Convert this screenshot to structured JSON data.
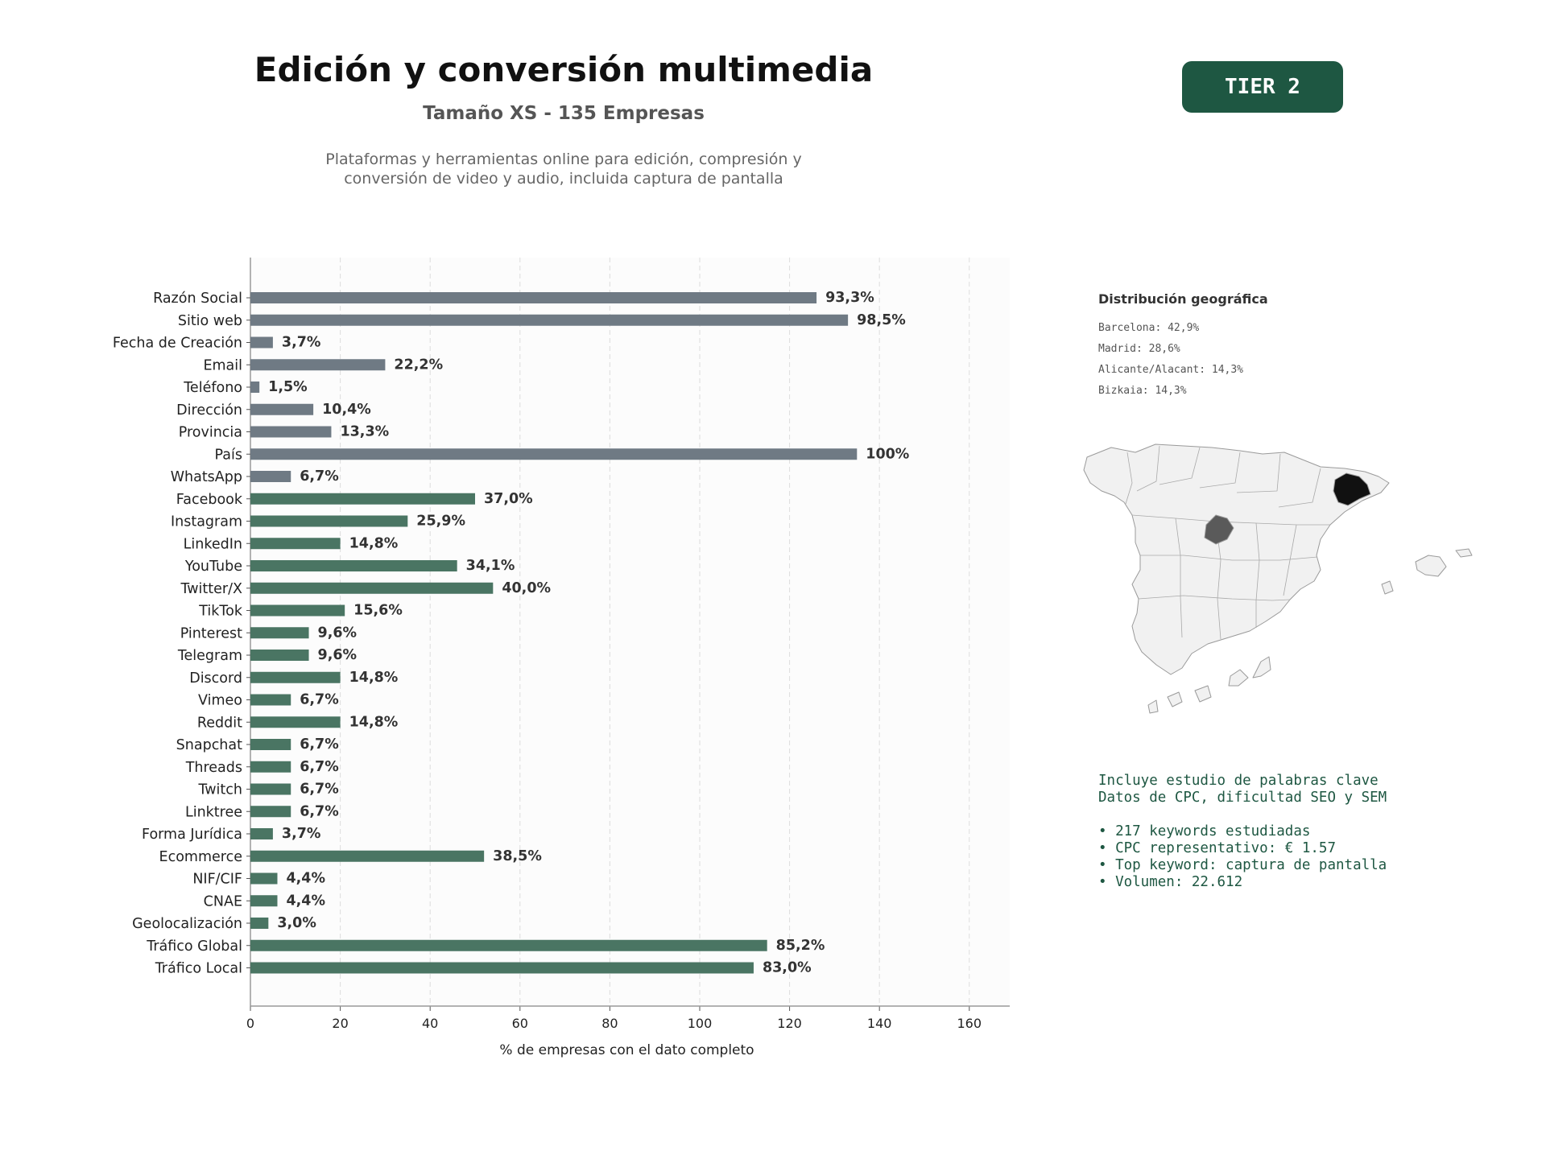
{
  "header": {
    "title": "Edición y conversión multimedia",
    "subtitle": "Tamaño XS - 135 Empresas",
    "description_line1": "Plataformas y herramientas online para edición, compresión y",
    "description_line2": "conversión de video y audio, incluida captura de pantalla",
    "tier_badge": "TIER 2"
  },
  "colors": {
    "badge": "#1e5742",
    "bar_contact": "#6f7a84",
    "bar_social": "#4a7563",
    "map_highlight_dark": "#111111",
    "map_highlight_mid": "#5a5a5a",
    "map_fill": "#f1f1f1",
    "keyword_text": "#1e5742"
  },
  "chart_data": {
    "type": "bar",
    "orientation": "horizontal",
    "categories": [
      "Razón Social",
      "Sitio web",
      "Fecha de Creación",
      "Email",
      "Teléfono",
      "Dirección",
      "Provincia",
      "País",
      "WhatsApp",
      "Facebook",
      "Instagram",
      "LinkedIn",
      "YouTube",
      "Twitter/X",
      "TikTok",
      "Pinterest",
      "Telegram",
      "Discord",
      "Vimeo",
      "Reddit",
      "Snapchat",
      "Threads",
      "Twitch",
      "Linktree",
      "Forma Jurídica",
      "Ecommerce",
      "NIF/CIF",
      "CNAE",
      "Geolocalización",
      "Tráfico Global",
      "Tráfico Local"
    ],
    "values": [
      126,
      133,
      5,
      30,
      2,
      14,
      18,
      135,
      9,
      50,
      35,
      20,
      46,
      54,
      21,
      13,
      13,
      20,
      9,
      20,
      9,
      9,
      9,
      9,
      5,
      52,
      6,
      6,
      4,
      115,
      112
    ],
    "value_labels": [
      "93,3%",
      "98,5%",
      "3,7%",
      "22,2%",
      "1,5%",
      "10,4%",
      "13,3%",
      "100%",
      "6,7%",
      "37,0%",
      "25,9%",
      "14,8%",
      "34,1%",
      "40,0%",
      "15,6%",
      "9,6%",
      "9,6%",
      "14,8%",
      "6,7%",
      "14,8%",
      "6,7%",
      "6,7%",
      "6,7%",
      "6,7%",
      "3,7%",
      "38,5%",
      "4,4%",
      "4,4%",
      "3,0%",
      "85,2%",
      "83,0%"
    ],
    "bar_groups": [
      "contact",
      "contact",
      "contact",
      "contact",
      "contact",
      "contact",
      "contact",
      "contact",
      "contact",
      "social",
      "social",
      "social",
      "social",
      "social",
      "social",
      "social",
      "social",
      "social",
      "social",
      "social",
      "social",
      "social",
      "social",
      "social",
      "social",
      "social",
      "social",
      "social",
      "social",
      "social",
      "social"
    ],
    "xlabel": "% de empresas con el dato completo",
    "xlim": [
      0,
      169
    ],
    "xticks": [
      0,
      20,
      40,
      60,
      80,
      100,
      120,
      140,
      160
    ],
    "grid": "vertical dashed"
  },
  "geo": {
    "title": "Distribución geográfica",
    "items": [
      "Barcelona: 42,9%",
      "Madrid: 28,6%",
      "Alicante/Alacant: 14,3%",
      "Bizkaia: 14,3%"
    ]
  },
  "keywords": {
    "line1": "Incluye estudio de palabras clave",
    "line2": "Datos de CPC, dificultad SEO y SEM",
    "bullet1": "• 217 keywords estudiadas",
    "bullet2": "• CPC representativo: € 1.57",
    "bullet3": "• Top keyword: captura de pantalla",
    "bullet4": "• Volumen: 22.612"
  }
}
